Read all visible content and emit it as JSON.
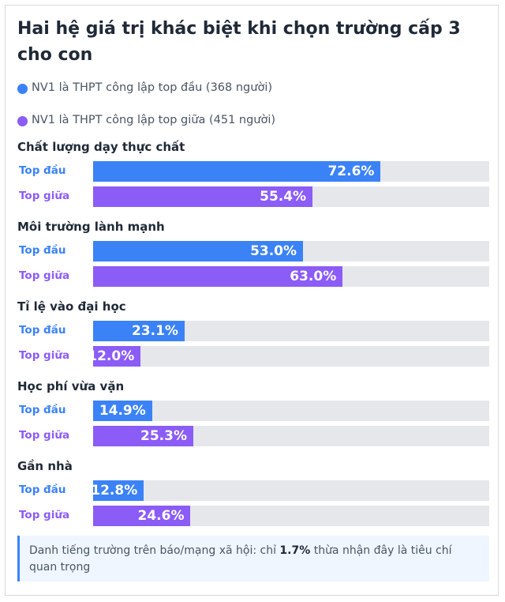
{
  "chart_data": {
    "type": "bar",
    "orientation": "horizontal",
    "title": "Hai hệ giá trị khác biệt khi chọn trường cấp 3 cho con",
    "categories": [
      "Chất lượng dạy thực chất",
      "Môi trường lành mạnh",
      "Tỉ lệ vào đại học",
      "Học phí vừa vặn",
      "Gần nhà"
    ],
    "series": [
      {
        "name": "NV1 là THPT công lập top đầu (368 người)",
        "label": "Top đầu",
        "color": "#3b82f6",
        "values": [
          72.6,
          53.0,
          23.1,
          14.9,
          12.8
        ],
        "value_labels": [
          "72.6%",
          "53.0%",
          "23.1%",
          "14.9%",
          "12.8%"
        ]
      },
      {
        "name": "NV1 là THPT công lập top giữa (451 người)",
        "label": "Top giữa",
        "color": "#8b5cf6",
        "values": [
          55.4,
          63.0,
          12.0,
          25.3,
          24.6
        ],
        "value_labels": [
          "55.4%",
          "63.0%",
          "12.0%",
          "25.3%",
          "24.6%"
        ]
      }
    ],
    "xlim": [
      0,
      100
    ],
    "note": {
      "text_before": "Danh tiếng trường trên báo/mạng xã hội: chỉ ",
      "highlight": "1.7%",
      "text_after": " thừa nhận đây là tiêu chí quan trọng"
    }
  }
}
